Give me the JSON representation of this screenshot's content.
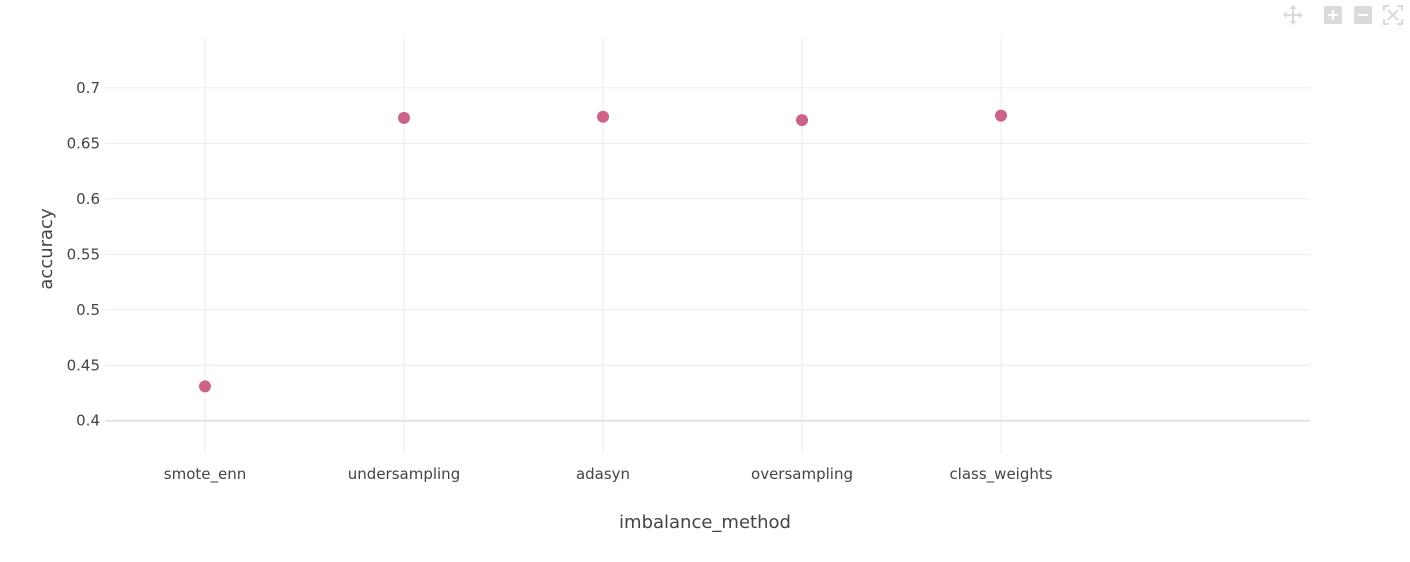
{
  "modebar": {
    "buttons": [
      {
        "icon": "pan-icon"
      },
      {
        "icon": "zoom-in-icon"
      },
      {
        "icon": "zoom-out-icon"
      },
      {
        "icon": "autoscale-icon"
      }
    ],
    "icon_color": "#dadada"
  },
  "colors": {
    "marker": "#cc6289",
    "grid": "#ebebeb",
    "zeroline": "#e2e2e2",
    "text": "#444444"
  },
  "chart_data": {
    "type": "scatter",
    "xlabel": "imbalance_method",
    "ylabel": "accuracy",
    "categories": [
      "smote_enn",
      "undersampling",
      "adasyn",
      "oversampling",
      "class_weights"
    ],
    "values": [
      0.431,
      0.673,
      0.674,
      0.671,
      0.675
    ],
    "ylim": [
      0.37,
      0.745
    ],
    "yticks": [
      0.4,
      0.45,
      0.5,
      0.55,
      0.6,
      0.65,
      0.7
    ],
    "ytick_labels": [
      "0.4",
      "0.45",
      "0.5",
      "0.55",
      "0.6",
      "0.65",
      "0.7"
    ],
    "grid": true,
    "legend": "none"
  }
}
